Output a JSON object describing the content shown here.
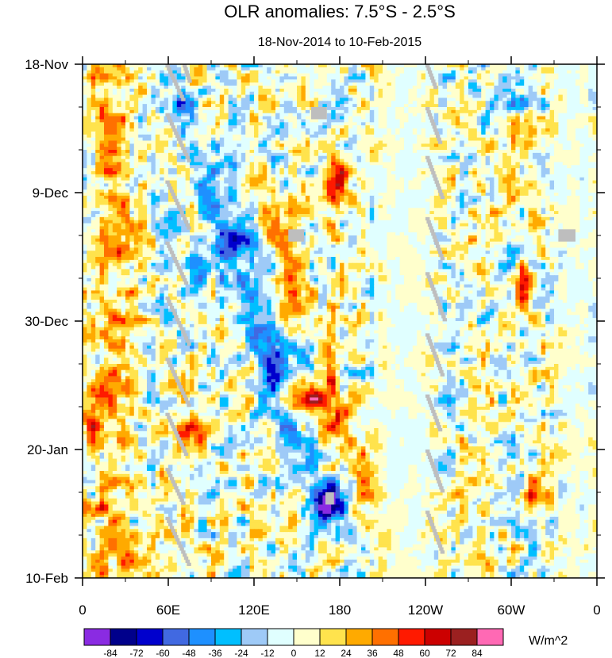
{
  "chart_data": {
    "type": "heatmap",
    "title": "OLR anomalies: 7.5°S - 2.5°S",
    "subtitle": "18-Nov-2014 to 10-Feb-2015",
    "x_ticks": [
      {
        "lon": 0,
        "label": "0"
      },
      {
        "lon": 60,
        "label": "60E"
      },
      {
        "lon": 120,
        "label": "120E"
      },
      {
        "lon": 180,
        "label": "180"
      },
      {
        "lon": 240,
        "label": "120W"
      },
      {
        "lon": 300,
        "label": "60W"
      },
      {
        "lon": 360,
        "label": "0"
      }
    ],
    "x_range": [
      0,
      360
    ],
    "y_ticks": [
      {
        "day": 0,
        "label": "18-Nov"
      },
      {
        "day": 21,
        "label": "9-Dec"
      },
      {
        "day": 42,
        "label": "30-Dec"
      },
      {
        "day": 63,
        "label": "20-Jan"
      },
      {
        "day": 84,
        "label": "10-Feb"
      }
    ],
    "y_range_days": [
      0,
      84
    ],
    "y_direction": "time increases downward",
    "colorbar": {
      "units": "W/m^2",
      "levels": [
        -84,
        -72,
        -60,
        -48,
        -36,
        -24,
        -12,
        0,
        12,
        24,
        36,
        48,
        60,
        72,
        84
      ],
      "colors": [
        "#8a2be2",
        "#00008b",
        "#0000cd",
        "#4169e1",
        "#1e90ff",
        "#00bfff",
        "#9ecaf7",
        "#e0ffff",
        "#ffffcc",
        "#ffe34d",
        "#ffaa00",
        "#ff7000",
        "#ff1a00",
        "#cc0000",
        "#9b2020",
        "#ff69b4"
      ]
    },
    "missing_color": "#bebebe"
  }
}
